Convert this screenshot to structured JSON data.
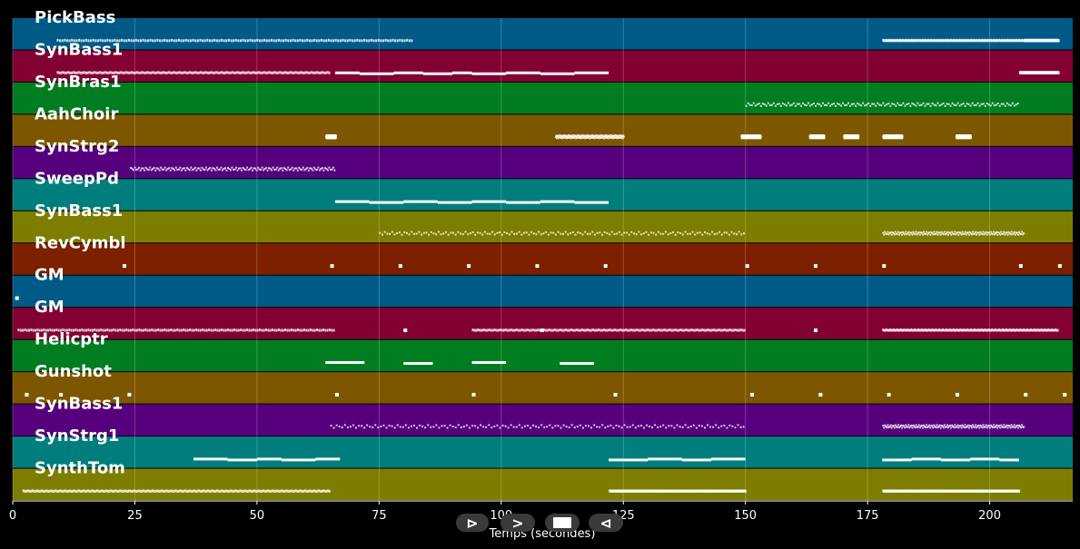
{
  "chart_data": {
    "type": "piano-roll",
    "xlabel": "Temps (secondes)",
    "xlim": [
      0,
      217
    ],
    "xticks": [
      0,
      25,
      50,
      75,
      100,
      125,
      150,
      175,
      200
    ],
    "grid": true,
    "tracks": [
      {
        "name": "PickBass",
        "color": "#005a87",
        "segments": [
          [
            9,
            82,
            150
          ],
          [
            178,
            207,
            150
          ],
          [
            207,
            214,
            150
          ]
        ],
        "style": "dense"
      },
      {
        "name": "SynBass1",
        "color": "#820032",
        "segments": [
          [
            9,
            65,
            155
          ],
          [
            206,
            214,
            155
          ]
        ],
        "style": "dense",
        "notes": [
          [
            66,
            71
          ],
          [
            71,
            78
          ],
          [
            78,
            84
          ],
          [
            84,
            90
          ],
          [
            90,
            94
          ],
          [
            94,
            101
          ],
          [
            101,
            108
          ],
          [
            108,
            115
          ],
          [
            115,
            122
          ]
        ]
      },
      {
        "name": "SynBras1",
        "color": "#007d20",
        "segments": [
          [
            150,
            206,
            150
          ]
        ],
        "style": "sparse"
      },
      {
        "name": "AahChoir",
        "color": "#7d5700",
        "segments": [
          [
            64,
            66,
            150
          ],
          [
            111,
            125,
            150
          ],
          [
            149,
            153,
            150
          ],
          [
            163,
            166,
            150
          ],
          [
            170,
            173,
            150
          ],
          [
            178,
            182,
            150
          ],
          [
            193,
            196,
            150
          ]
        ],
        "style": "sparse"
      },
      {
        "name": "SynStrg2",
        "color": "#57007d",
        "segments": [
          [
            24,
            66,
            150
          ]
        ],
        "style": "sparse"
      },
      {
        "name": "SweepPd",
        "color": "#007d7d",
        "segments": [],
        "style": "none",
        "notes": [
          [
            66,
            73
          ],
          [
            73,
            80
          ],
          [
            80,
            87
          ],
          [
            87,
            94
          ],
          [
            94,
            101
          ],
          [
            101,
            108
          ],
          [
            108,
            115
          ],
          [
            115,
            122
          ]
        ]
      },
      {
        "name": "SynBass1",
        "color": "#7d7d00",
        "segments": [
          [
            75,
            150,
            150
          ],
          [
            178,
            207,
            150
          ]
        ],
        "style": "sparse"
      },
      {
        "name": "RevCymbl",
        "color": "#7d2000",
        "segments": [],
        "style": "none",
        "dots": [
          22.5,
          65,
          79,
          93,
          107,
          121,
          150,
          164,
          178,
          206,
          214
        ]
      },
      {
        "name": "GM",
        "color": "#005a87",
        "segments": [],
        "style": "none",
        "dots": [
          0.5
        ]
      },
      {
        "name": "GM",
        "color": "#820032",
        "segments": [
          [
            1,
            66,
            150
          ],
          [
            94,
            150,
            150
          ],
          [
            178,
            214,
            150
          ]
        ],
        "style": "dense",
        "dots": [
          80,
          108,
          164
        ]
      },
      {
        "name": "Helicptr",
        "color": "#007d20",
        "segments": [],
        "style": "none",
        "notes": [
          [
            64,
            72
          ],
          [
            80,
            86
          ],
          [
            94,
            101
          ],
          [
            112,
            119
          ]
        ]
      },
      {
        "name": "Gunshot",
        "color": "#7d5700",
        "segments": [],
        "style": "none",
        "dots": [
          2.5,
          9.5,
          23.5,
          66,
          94,
          123,
          151,
          165,
          179,
          193,
          207,
          215
        ]
      },
      {
        "name": "SynBass1",
        "color": "#57007d",
        "segments": [
          [
            65,
            150,
            150
          ],
          [
            178,
            207,
            150
          ]
        ],
        "style": "sparse"
      },
      {
        "name": "SynStrg1",
        "color": "#007d7d",
        "segments": [],
        "style": "none",
        "notes": [
          [
            37,
            44
          ],
          [
            44,
            50
          ],
          [
            50,
            55
          ],
          [
            55,
            62
          ],
          [
            62,
            67
          ],
          [
            122,
            130
          ],
          [
            130,
            137
          ],
          [
            137,
            143
          ],
          [
            143,
            150
          ],
          [
            178,
            184
          ],
          [
            184,
            190
          ],
          [
            190,
            196
          ],
          [
            196,
            202
          ],
          [
            202,
            206
          ]
        ]
      },
      {
        "name": "SynthTom",
        "color": "#7d7d00",
        "segments": [
          [
            2,
            65,
            200
          ],
          [
            122,
            150,
            200
          ],
          [
            178,
            206,
            200
          ]
        ],
        "style": "dense"
      }
    ]
  },
  "controls": {
    "play": "⊳",
    "forward": ">",
    "back": "⊲"
  }
}
